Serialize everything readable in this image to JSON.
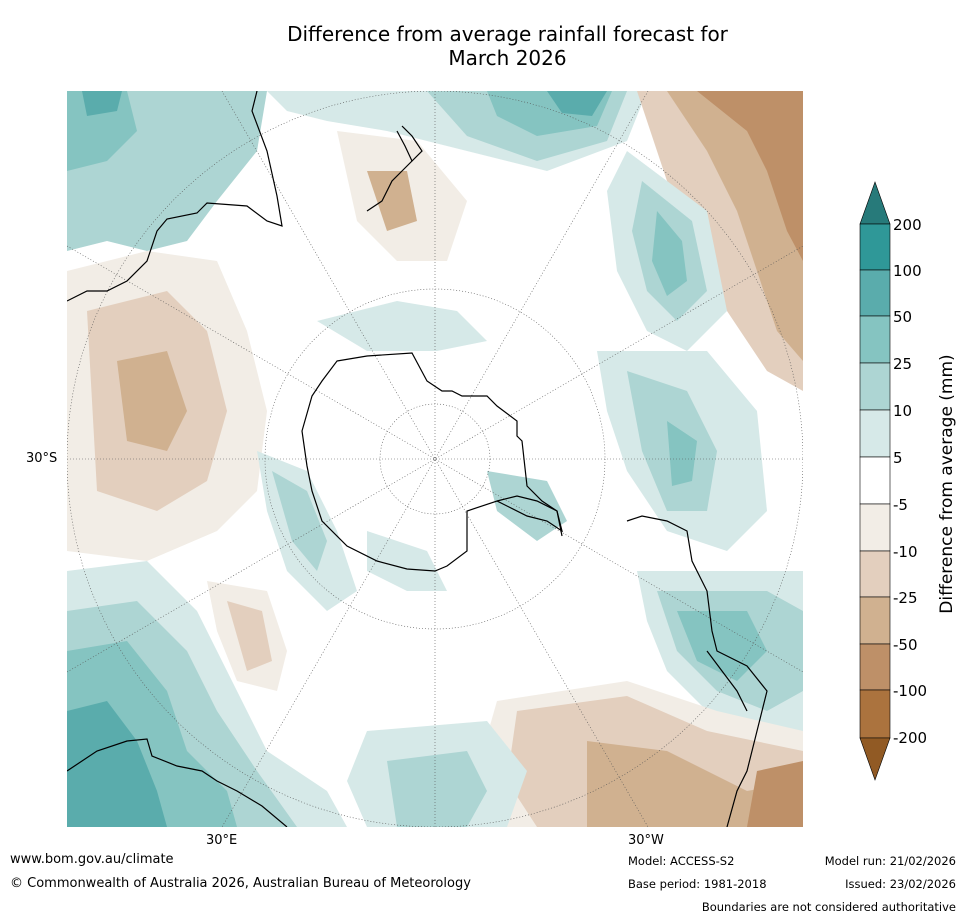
{
  "title_line1": "Difference from average rainfall forecast for",
  "title_line2": "March 2026",
  "map": {
    "projection": "south-polar-stereographic",
    "lat_label": "30°S",
    "lon_labels": [
      "30°E",
      "30°W"
    ]
  },
  "colorbar": {
    "title": "Difference from average (mm)",
    "ticks": [
      "200",
      "100",
      "50",
      "25",
      "10",
      "5",
      "-5",
      "-10",
      "-25",
      "-50",
      "-100",
      "-200"
    ],
    "colors": {
      "over": "#277a7a",
      "100_200": "#2f9898",
      "50_100": "#5aacac",
      "25_50": "#85c4c1",
      "10_25": "#add5d3",
      "5_10": "#d6e9e8",
      "neutral": "#ffffff",
      "n5_n10": "#f2ede6",
      "n10_n25": "#e3cfbe",
      "n25_n50": "#d0b190",
      "n50_n100": "#be9068",
      "n100_n200": "#ab733e",
      "under": "#915a24"
    }
  },
  "footer": {
    "website": "www.bom.gov.au/climate",
    "copyright": "© Commonwealth of Australia 2026, Australian Bureau of Meteorology",
    "model": "Model: ACCESS-S2",
    "base_period": "Base period: 1981-2018",
    "model_run": "Model run: 21/02/2026",
    "issued": "Issued: 23/02/2026",
    "disclaimer": "Boundaries are not considered authoritative"
  }
}
